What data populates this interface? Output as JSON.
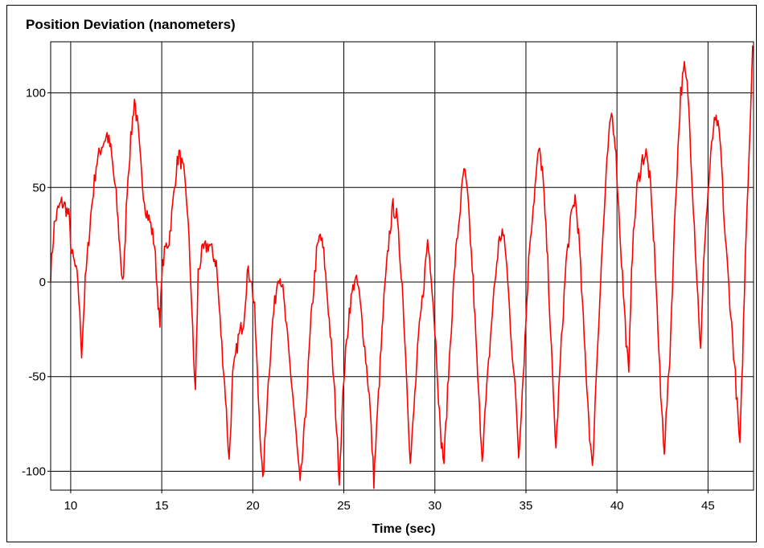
{
  "chart_data": {
    "type": "line",
    "title": "Position Deviation (nanometers)",
    "xlabel": "Time (sec)",
    "ylabel": "",
    "xlim": [
      8.9,
      47.5
    ],
    "ylim": [
      -110,
      127
    ],
    "xticks": [
      10,
      15,
      20,
      25,
      30,
      35,
      40,
      45
    ],
    "yticks": [
      -100,
      -50,
      0,
      50,
      100
    ],
    "grid": true,
    "series": [
      {
        "color": "#ff0000",
        "points": [
          [
            8.9,
            5
          ],
          [
            9.1,
            30
          ],
          [
            9.3,
            38
          ],
          [
            9.5,
            42
          ],
          [
            9.7,
            40
          ],
          [
            9.9,
            35
          ],
          [
            10.05,
            15
          ],
          [
            10.2,
            10
          ],
          [
            10.4,
            0
          ],
          [
            10.6,
            -37
          ],
          [
            10.8,
            0
          ],
          [
            11.1,
            35
          ],
          [
            11.4,
            62
          ],
          [
            11.7,
            72
          ],
          [
            12.0,
            78
          ],
          [
            12.2,
            70
          ],
          [
            12.5,
            45
          ],
          [
            12.8,
            5
          ],
          [
            12.9,
            0
          ],
          [
            13.1,
            50
          ],
          [
            13.3,
            75
          ],
          [
            13.5,
            97
          ],
          [
            13.7,
            80
          ],
          [
            13.9,
            55
          ],
          [
            14.1,
            40
          ],
          [
            14.4,
            30
          ],
          [
            14.6,
            20
          ],
          [
            14.8,
            -10
          ],
          [
            14.9,
            -25
          ],
          [
            15.0,
            5
          ],
          [
            15.2,
            18
          ],
          [
            15.4,
            22
          ],
          [
            15.6,
            40
          ],
          [
            15.8,
            60
          ],
          [
            15.95,
            68
          ],
          [
            16.2,
            58
          ],
          [
            16.4,
            40
          ],
          [
            16.6,
            0
          ],
          [
            16.75,
            -40
          ],
          [
            16.85,
            -58
          ],
          [
            17.0,
            5
          ],
          [
            17.2,
            15
          ],
          [
            17.4,
            18
          ],
          [
            17.6,
            20
          ],
          [
            17.8,
            15
          ],
          [
            18.0,
            10
          ],
          [
            18.2,
            -20
          ],
          [
            18.5,
            -60
          ],
          [
            18.7,
            -95
          ],
          [
            18.9,
            -50
          ],
          [
            19.2,
            -30
          ],
          [
            19.5,
            -20
          ],
          [
            19.7,
            5
          ],
          [
            19.9,
            3
          ],
          [
            20.1,
            -15
          ],
          [
            20.3,
            -60
          ],
          [
            20.55,
            -107
          ],
          [
            20.8,
            -60
          ],
          [
            21.1,
            -20
          ],
          [
            21.4,
            5
          ],
          [
            21.6,
            0
          ],
          [
            21.9,
            -30
          ],
          [
            22.2,
            -60
          ],
          [
            22.6,
            -108
          ],
          [
            22.9,
            -70
          ],
          [
            23.2,
            -20
          ],
          [
            23.5,
            15
          ],
          [
            23.7,
            25
          ],
          [
            23.9,
            15
          ],
          [
            24.2,
            -20
          ],
          [
            24.5,
            -60
          ],
          [
            24.75,
            -104
          ],
          [
            25.0,
            -50
          ],
          [
            25.3,
            -15
          ],
          [
            25.6,
            2
          ],
          [
            25.8,
            -3
          ],
          [
            26.1,
            -30
          ],
          [
            26.4,
            -60
          ],
          [
            26.65,
            -105
          ],
          [
            26.9,
            -60
          ],
          [
            27.2,
            -10
          ],
          [
            27.5,
            25
          ],
          [
            27.7,
            40
          ],
          [
            27.9,
            35
          ],
          [
            28.2,
            0
          ],
          [
            28.5,
            -60
          ],
          [
            28.65,
            -97
          ],
          [
            28.9,
            -60
          ],
          [
            29.1,
            -30
          ],
          [
            29.4,
            0
          ],
          [
            29.6,
            22
          ],
          [
            29.8,
            5
          ],
          [
            30.1,
            -40
          ],
          [
            30.3,
            -80
          ],
          [
            30.5,
            -95
          ],
          [
            30.8,
            -40
          ],
          [
            31.1,
            10
          ],
          [
            31.4,
            40
          ],
          [
            31.6,
            60
          ],
          [
            31.8,
            45
          ],
          [
            32.1,
            0
          ],
          [
            32.4,
            -60
          ],
          [
            32.6,
            -92
          ],
          [
            32.9,
            -50
          ],
          [
            33.2,
            -10
          ],
          [
            33.5,
            20
          ],
          [
            33.7,
            27
          ],
          [
            33.9,
            15
          ],
          [
            34.2,
            -30
          ],
          [
            34.5,
            -70
          ],
          [
            34.6,
            -92
          ],
          [
            34.9,
            -40
          ],
          [
            35.2,
            20
          ],
          [
            35.5,
            50
          ],
          [
            35.7,
            70
          ],
          [
            35.9,
            60
          ],
          [
            36.2,
            10
          ],
          [
            36.5,
            -60
          ],
          [
            36.65,
            -88
          ],
          [
            36.9,
            -40
          ],
          [
            37.2,
            10
          ],
          [
            37.5,
            35
          ],
          [
            37.7,
            45
          ],
          [
            37.9,
            25
          ],
          [
            38.2,
            -30
          ],
          [
            38.5,
            -80
          ],
          [
            38.65,
            -100
          ],
          [
            38.9,
            -40
          ],
          [
            39.2,
            20
          ],
          [
            39.5,
            70
          ],
          [
            39.7,
            90
          ],
          [
            39.9,
            75
          ],
          [
            40.2,
            20
          ],
          [
            40.5,
            -30
          ],
          [
            40.65,
            -50
          ],
          [
            40.8,
            10
          ],
          [
            41.1,
            50
          ],
          [
            41.4,
            65
          ],
          [
            41.6,
            68
          ],
          [
            41.8,
            55
          ],
          [
            42.1,
            10
          ],
          [
            42.4,
            -60
          ],
          [
            42.6,
            -88
          ],
          [
            42.9,
            -40
          ],
          [
            43.2,
            40
          ],
          [
            43.5,
            100
          ],
          [
            43.7,
            113
          ],
          [
            43.9,
            100
          ],
          [
            44.1,
            60
          ],
          [
            44.4,
            0
          ],
          [
            44.6,
            -37
          ],
          [
            44.8,
            20
          ],
          [
            45.1,
            60
          ],
          [
            45.3,
            82
          ],
          [
            45.5,
            85
          ],
          [
            45.7,
            70
          ],
          [
            45.9,
            30
          ],
          [
            46.2,
            -10
          ],
          [
            46.5,
            -50
          ],
          [
            46.75,
            -88
          ],
          [
            46.9,
            -40
          ],
          [
            47.1,
            30
          ],
          [
            47.3,
            80
          ],
          [
            47.45,
            125
          ]
        ]
      }
    ]
  }
}
